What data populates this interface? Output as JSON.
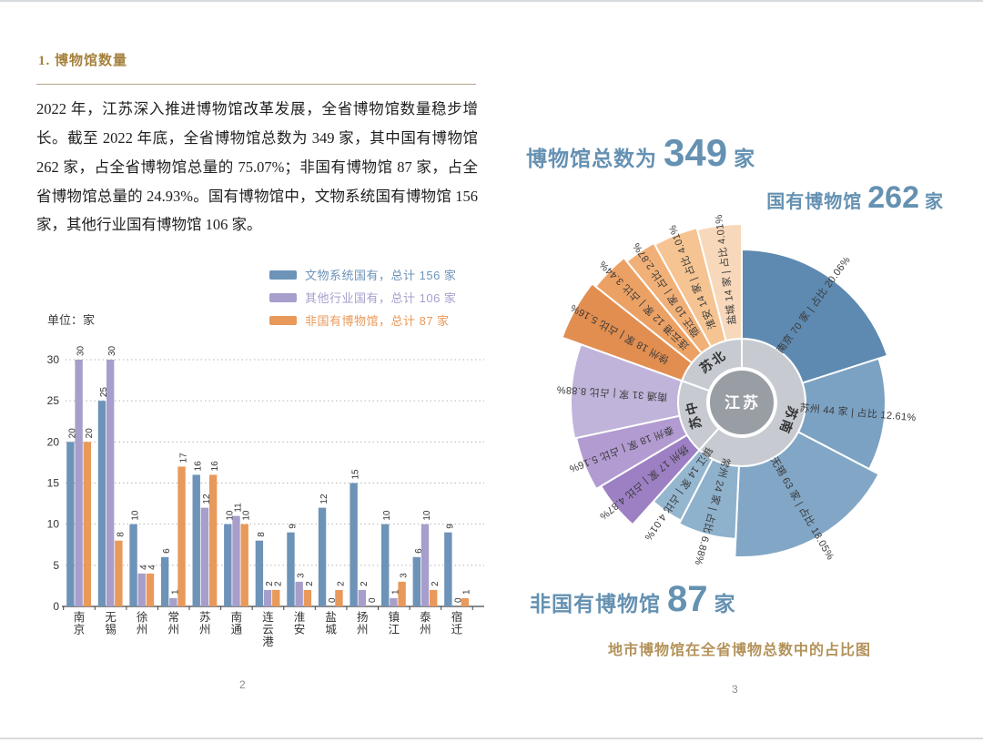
{
  "colors": {
    "accent_blue": "#6591b2",
    "accent_gold": "#a5813c",
    "caption_gold": "#b3925a",
    "ring_gray": "#c7cbd1",
    "center_gray": "#999da4"
  },
  "page_left": {
    "page_number": "2",
    "heading": "1. 博物馆数量",
    "paragraph": "2022 年，江苏深入推进博物馆改革发展，全省博物馆数量稳步增长。截至 2022 年底，全省博物馆总数为 349 家，其中国有博物馆 262 家，占全省博物馆总量的 75.07%；非国有博物馆 87 家，占全省博物馆总量的 24.93%。国有博物馆中，文物系统国有博物馆 156 家，其他行业国有博物馆 106 家。",
    "unit_label": "单位：家",
    "legend": [
      {
        "label": "文物系统国有，总计 156 家",
        "color": "#6d93b8"
      },
      {
        "label": "其他行业国有，总计 106 家",
        "color": "#a79ecb"
      },
      {
        "label": "非国有博物馆，总计 87 家",
        "color": "#e9995a"
      }
    ]
  },
  "page_right": {
    "page_number": "3",
    "total_title": {
      "prefix": "博物馆总数为",
      "number": "349",
      "suffix": "家"
    },
    "state_title": {
      "prefix": "国有博物馆",
      "number": "262",
      "suffix": "家"
    },
    "nonstate_title": {
      "prefix": "非国有博物馆",
      "number": "87",
      "suffix": "家"
    },
    "caption": "地市博物馆在全省博物总数中的占比图"
  },
  "chart_data": [
    {
      "type": "bar",
      "unit": "家",
      "categories": [
        "南京",
        "无锡",
        "徐州",
        "常州",
        "苏州",
        "南通",
        "连云港",
        "淮安",
        "盐城",
        "扬州",
        "镇江",
        "泰州",
        "宿迁"
      ],
      "series": [
        {
          "name": "文物系统国有，总计 156 家",
          "color": "#6d93b8",
          "values": [
            20,
            25,
            10,
            6,
            16,
            10,
            8,
            9,
            12,
            15,
            10,
            6,
            9
          ]
        },
        {
          "name": "其他行业国有，总计 106 家",
          "color": "#a79ecb",
          "values": [
            30,
            30,
            4,
            1,
            12,
            11,
            2,
            3,
            0,
            2,
            1,
            10,
            0
          ]
        },
        {
          "name": "非国有博物馆，总计 87 家",
          "color": "#e9995a",
          "values": [
            20,
            8,
            4,
            17,
            16,
            10,
            2,
            2,
            2,
            0,
            3,
            2,
            1
          ]
        }
      ],
      "ylim": [
        0,
        30
      ],
      "yticks": [
        0,
        5,
        10,
        15,
        20,
        25,
        30
      ],
      "grid": "dotted horizontal"
    },
    {
      "type": "sunburst",
      "title": "地市博物馆在全省博物总数中的占比图",
      "total": 349,
      "center_label": "江苏",
      "label_format": "{name} {value} 家 | 占比 {pct}%",
      "regions": [
        {
          "name": "苏南",
          "cities": [
            {
              "name": "南京",
              "value": 70,
              "pct": "20.06",
              "color": "#5e8ab1",
              "outer_r": 168
            },
            {
              "name": "苏州",
              "value": 44,
              "pct": "12.61",
              "color": "#7ba2c3",
              "outer_r": 158
            },
            {
              "name": "无锡",
              "value": 63,
              "pct": "18.05",
              "color": "#82a7c6",
              "outer_r": 170
            },
            {
              "name": "常州",
              "value": 24,
              "pct": "6.88",
              "color": "#8eb1cc",
              "outer_r": 150
            },
            {
              "name": "镇江",
              "value": 14,
              "pct": "4.01",
              "color": "#95b6cf",
              "outer_r": 146
            }
          ]
        },
        {
          "name": "苏中",
          "cities": [
            {
              "name": "扬州",
              "value": 17,
              "pct": "4.87",
              "color": "#9d80c3",
              "outer_r": 180
            },
            {
              "name": "泰州",
              "value": 18,
              "pct": "5.16",
              "color": "#b29bd1",
              "outer_r": 186
            },
            {
              "name": "南通",
              "value": 31,
              "pct": "8.88",
              "color": "#c1b4da",
              "outer_r": 188
            }
          ]
        },
        {
          "name": "苏北",
          "cities": [
            {
              "name": "徐州",
              "value": 18,
              "pct": "5.16",
              "color": "#e28e50",
              "outer_r": 210
            },
            {
              "name": "连云港",
              "value": 12,
              "pct": "3.44",
              "color": "#eca164",
              "outer_r": 205
            },
            {
              "name": "宿迁",
              "value": 10,
              "pct": "2.87",
              "color": "#f1b078",
              "outer_r": 200
            },
            {
              "name": "淮安",
              "value": 14,
              "pct": "4.01",
              "color": "#f5c492",
              "outer_r": 198
            },
            {
              "name": "盐城",
              "value": 14,
              "pct": "4.01",
              "color": "#f8d8ba",
              "outer_r": 196
            }
          ]
        }
      ]
    }
  ]
}
